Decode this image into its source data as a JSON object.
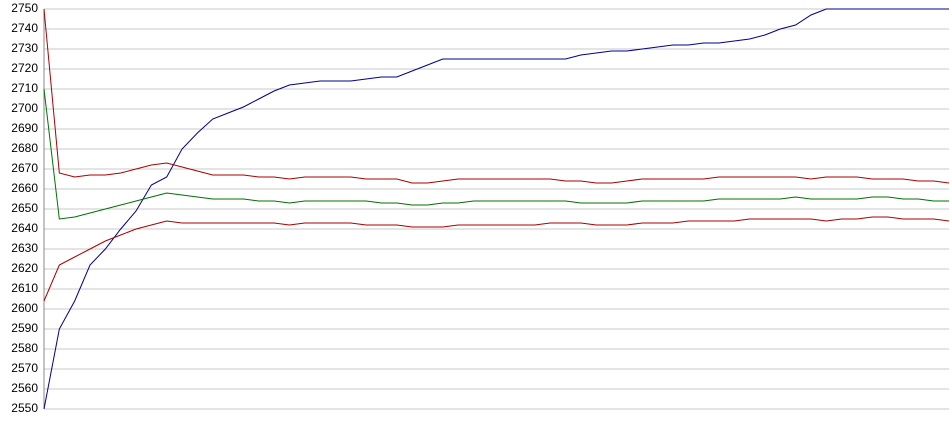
{
  "chart_data": {
    "type": "line",
    "ylim": [
      2550,
      2750
    ],
    "yticks": [
      2550,
      2560,
      2570,
      2580,
      2590,
      2600,
      2610,
      2620,
      2630,
      2640,
      2650,
      2660,
      2670,
      2680,
      2690,
      2700,
      2710,
      2720,
      2730,
      2740,
      2750
    ],
    "grid": true,
    "series": [
      {
        "color": "#00008b",
        "values": [
          2550,
          2590,
          2604,
          2622,
          2630,
          2640,
          2649,
          2662,
          2666,
          2680,
          2688,
          2695,
          2698,
          2701,
          2705,
          2709,
          2712,
          2713,
          2714,
          2714,
          2714,
          2715,
          2716,
          2716,
          2719,
          2722,
          2725,
          2725,
          2725,
          2725,
          2725,
          2725,
          2725,
          2725,
          2725,
          2727,
          2728,
          2729,
          2729,
          2730,
          2731,
          2732,
          2732,
          2733,
          2733,
          2734,
          2735,
          2737,
          2740,
          2742,
          2747,
          2750,
          2750,
          2750,
          2750,
          2750,
          2750,
          2750,
          2750,
          2750
        ]
      },
      {
        "color": "#aa0000",
        "values": [
          2750,
          2668,
          2666,
          2667,
          2667,
          2668,
          2670,
          2672,
          2673,
          2671,
          2669,
          2667,
          2667,
          2667,
          2666,
          2666,
          2665,
          2666,
          2666,
          2666,
          2666,
          2665,
          2665,
          2665,
          2663,
          2663,
          2664,
          2665,
          2665,
          2665,
          2665,
          2665,
          2665,
          2665,
          2664,
          2664,
          2663,
          2663,
          2664,
          2665,
          2665,
          2665,
          2665,
          2665,
          2666,
          2666,
          2666,
          2666,
          2666,
          2666,
          2665,
          2666,
          2666,
          2666,
          2665,
          2665,
          2665,
          2664,
          2664,
          2663
        ]
      },
      {
        "color": "#007000",
        "values": [
          2710,
          2645,
          2646,
          2648,
          2650,
          2652,
          2654,
          2656,
          2658,
          2657,
          2656,
          2655,
          2655,
          2655,
          2654,
          2654,
          2653,
          2654,
          2654,
          2654,
          2654,
          2654,
          2653,
          2653,
          2652,
          2652,
          2653,
          2653,
          2654,
          2654,
          2654,
          2654,
          2654,
          2654,
          2654,
          2653,
          2653,
          2653,
          2653,
          2654,
          2654,
          2654,
          2654,
          2654,
          2655,
          2655,
          2655,
          2655,
          2655,
          2656,
          2655,
          2655,
          2655,
          2655,
          2656,
          2656,
          2655,
          2655,
          2654,
          2654
        ]
      },
      {
        "color": "#aa0000",
        "values": [
          2604,
          2622,
          2626,
          2630,
          2634,
          2637,
          2640,
          2642,
          2644,
          2643,
          2643,
          2643,
          2643,
          2643,
          2643,
          2643,
          2642,
          2643,
          2643,
          2643,
          2643,
          2642,
          2642,
          2642,
          2641,
          2641,
          2641,
          2642,
          2642,
          2642,
          2642,
          2642,
          2642,
          2643,
          2643,
          2643,
          2642,
          2642,
          2642,
          2643,
          2643,
          2643,
          2644,
          2644,
          2644,
          2644,
          2645,
          2645,
          2645,
          2645,
          2645,
          2644,
          2645,
          2645,
          2646,
          2646,
          2645,
          2645,
          2645,
          2644
        ]
      }
    ]
  }
}
